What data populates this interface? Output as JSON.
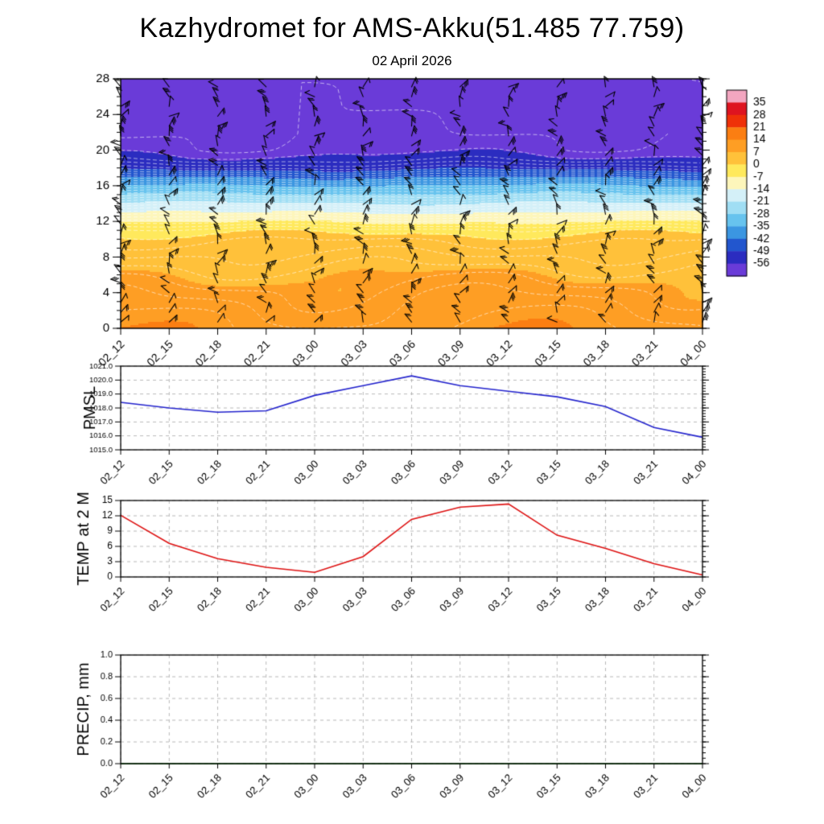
{
  "title": "Kazhydromet for AMS-Akku(51.485 77.759)",
  "subtitle": "02 April 2026",
  "x_labels": [
    "02_12",
    "02_15",
    "02_18",
    "02_21",
    "03_00",
    "03_03",
    "03_06",
    "03_09",
    "03_12",
    "03_15",
    "03_18",
    "03_21",
    "04_00"
  ],
  "chart_data": [
    {
      "type": "heatmap",
      "name": "temperature-height-cross-section",
      "overlay": "black wind barbs and thin white temperature contours",
      "ylim": [
        0,
        28
      ],
      "yticks": [
        0,
        4,
        8,
        12,
        16,
        20,
        24,
        28
      ],
      "ytick_labels": [
        "0",
        "4",
        "8",
        "12",
        "16",
        "20",
        "24",
        "28"
      ],
      "contour_interval": 2,
      "profile_height_temp": [
        [
          0,
          12
        ],
        [
          2,
          10.5
        ],
        [
          4,
          9
        ],
        [
          6,
          7
        ],
        [
          8,
          4.5
        ],
        [
          10,
          1.5
        ],
        [
          11,
          -1
        ],
        [
          12,
          -7
        ],
        [
          13,
          -13.5
        ],
        [
          14,
          -20
        ],
        [
          15,
          -27
        ],
        [
          16,
          -34
        ],
        [
          17,
          -42
        ],
        [
          18,
          -50
        ],
        [
          19,
          -55
        ],
        [
          20,
          -57
        ],
        [
          22,
          -57.8
        ],
        [
          24,
          -58.2
        ],
        [
          26,
          -58.4
        ],
        [
          28,
          -58.6
        ]
      ],
      "colorbar": {
        "tick_labels": [
          "35",
          "28",
          "21",
          "14",
          "7",
          "0",
          "-7",
          "-14",
          "-21",
          "-28",
          "-35",
          "-42",
          "-49",
          "-56"
        ],
        "boundaries": [
          35,
          28,
          21,
          14,
          7,
          0,
          -7,
          -14,
          -21,
          -28,
          -35,
          -42,
          -49,
          -56
        ],
        "colors": [
          "#f3a6c0",
          "#de1420",
          "#ef3108",
          "#fb7e12",
          "#fe9e24",
          "#ffc13a",
          "#ffe95c",
          "#fdf6bb",
          "#d4f0f8",
          "#a0def4",
          "#67c3ee",
          "#3b96e1",
          "#2256ce",
          "#2b2cc0",
          "#6a3bd8"
        ]
      }
    },
    {
      "type": "line",
      "name": "pmsl",
      "ylabel": "PMSL",
      "color": "#2222cc",
      "ylim": [
        1015,
        1021
      ],
      "yticks": [
        1015,
        1016,
        1017,
        1018,
        1019,
        1020,
        1021
      ],
      "ytick_labels": [
        "1015.0",
        "1016.0",
        "1017.0",
        "1018.0",
        "1019.0",
        "1020.0",
        "1021.0"
      ],
      "values": [
        1018.4,
        1018.0,
        1017.7,
        1017.8,
        1018.9,
        1019.6,
        1020.3,
        1019.6,
        1019.2,
        1018.8,
        1018.1,
        1016.6,
        1015.9
      ]
    },
    {
      "type": "line",
      "name": "temp-2m",
      "ylabel": "TEMP at 2 M",
      "color": "#dd1111",
      "ylim": [
        0,
        15
      ],
      "yticks": [
        0,
        3,
        6,
        9,
        12,
        15
      ],
      "ytick_labels": [
        "0",
        "3",
        "6",
        "9",
        "12",
        "15"
      ],
      "values": [
        12.1,
        6.6,
        3.6,
        1.9,
        0.9,
        4.0,
        11.3,
        13.7,
        14.3,
        8.2,
        5.6,
        2.6,
        0.4
      ]
    },
    {
      "type": "line",
      "name": "precip",
      "ylabel": "PRECIP, mm",
      "color": "#006400",
      "ylim": [
        0,
        1
      ],
      "yticks": [
        0,
        0.2,
        0.4,
        0.6,
        0.8,
        1.0
      ],
      "ytick_labels": [
        "0.0",
        "0.2",
        "0.4",
        "0.6",
        "0.8",
        "1.0"
      ],
      "values": [
        0,
        0,
        0,
        0,
        0,
        0,
        0,
        0,
        0,
        0,
        0,
        0,
        0
      ]
    }
  ]
}
